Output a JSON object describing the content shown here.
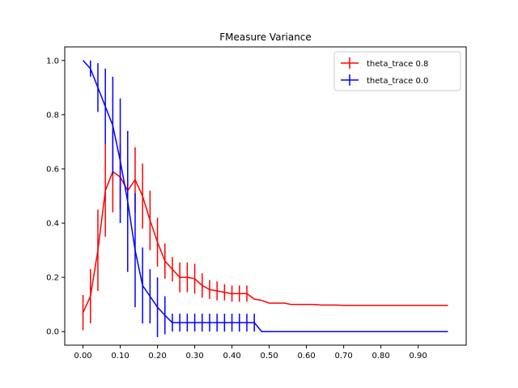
{
  "chart_data": {
    "type": "line",
    "title": "FMeasure Variance",
    "xlabel": "",
    "ylabel": "",
    "xlim": [
      -0.049,
      1.029
    ],
    "ylim": [
      -0.05,
      1.05
    ],
    "xticks": [
      0.0,
      0.1,
      0.2,
      0.3,
      0.4,
      0.5,
      0.6,
      0.7,
      0.8,
      0.9
    ],
    "xtick_labels": [
      "0.00",
      "0.10",
      "0.20",
      "0.30",
      "0.40",
      "0.50",
      "0.60",
      "0.70",
      "0.80",
      "0.90"
    ],
    "yticks": [
      0.0,
      0.2,
      0.4,
      0.6,
      0.8,
      1.0
    ],
    "ytick_labels": [
      "0.0",
      "0.2",
      "0.4",
      "0.6",
      "0.8",
      "1.0"
    ],
    "grid": false,
    "legend_position": "top-right",
    "series": [
      {
        "name": "theta_trace 0.8",
        "color": "#ff0000",
        "x": [
          0.0,
          0.02,
          0.04,
          0.06,
          0.08,
          0.1,
          0.12,
          0.14,
          0.16,
          0.18,
          0.2,
          0.22,
          0.24,
          0.26,
          0.28,
          0.3,
          0.32,
          0.34,
          0.36,
          0.38,
          0.4,
          0.42,
          0.44,
          0.46,
          0.48,
          0.5,
          0.52,
          0.54,
          0.56,
          0.58,
          0.6,
          0.62,
          0.64,
          0.66,
          0.68,
          0.7,
          0.72,
          0.74,
          0.76,
          0.78,
          0.8,
          0.82,
          0.84,
          0.86,
          0.88,
          0.9,
          0.92,
          0.94,
          0.96,
          0.98
        ],
        "y": [
          0.07,
          0.13,
          0.3,
          0.52,
          0.59,
          0.57,
          0.52,
          0.56,
          0.5,
          0.41,
          0.33,
          0.26,
          0.23,
          0.2,
          0.2,
          0.195,
          0.17,
          0.155,
          0.15,
          0.145,
          0.14,
          0.14,
          0.14,
          0.12,
          0.115,
          0.105,
          0.105,
          0.105,
          0.1,
          0.1,
          0.1,
          0.1,
          0.098,
          0.098,
          0.098,
          0.097,
          0.097,
          0.097,
          0.097,
          0.097,
          0.097,
          0.097,
          0.097,
          0.097,
          0.097,
          0.097,
          0.097,
          0.097,
          0.097,
          0.097
        ],
        "err": [
          0.065,
          0.1,
          0.15,
          0.17,
          0.15,
          0.12,
          0.1,
          0.12,
          0.12,
          0.11,
          0.09,
          0.065,
          0.045,
          0.055,
          0.055,
          0.055,
          0.045,
          0.035,
          0.035,
          0.03,
          0.03,
          0.03,
          0.03,
          0.0,
          0.0,
          0.0,
          0.0,
          0.0,
          0.0,
          0.0,
          0.0,
          0.0,
          0.0,
          0.0,
          0.0,
          0.0,
          0.0,
          0.0,
          0.0,
          0.0,
          0.0,
          0.0,
          0.0,
          0.0,
          0.0,
          0.0,
          0.0,
          0.0,
          0.0,
          0.0
        ]
      },
      {
        "name": "theta_trace 0.0",
        "color": "#0000ff",
        "x": [
          0.0,
          0.02,
          0.04,
          0.06,
          0.08,
          0.1,
          0.12,
          0.14,
          0.16,
          0.18,
          0.2,
          0.22,
          0.24,
          0.26,
          0.28,
          0.3,
          0.32,
          0.34,
          0.36,
          0.38,
          0.4,
          0.42,
          0.44,
          0.46,
          0.48,
          0.5,
          0.52,
          0.54,
          0.56,
          0.58,
          0.6,
          0.62,
          0.64,
          0.66,
          0.68,
          0.7,
          0.72,
          0.74,
          0.76,
          0.78,
          0.8,
          0.82,
          0.84,
          0.86,
          0.88,
          0.9,
          0.92,
          0.94,
          0.96,
          0.98
        ],
        "y": [
          1.0,
          0.97,
          0.9,
          0.83,
          0.76,
          0.63,
          0.48,
          0.3,
          0.17,
          0.13,
          0.09,
          0.06,
          0.033,
          0.033,
          0.033,
          0.033,
          0.033,
          0.033,
          0.033,
          0.033,
          0.033,
          0.033,
          0.033,
          0.033,
          0.0,
          0.0,
          0.0,
          0.0,
          0.0,
          0.0,
          0.0,
          0.0,
          0.0,
          0.0,
          0.0,
          0.0,
          0.0,
          0.0,
          0.0,
          0.0,
          0.0,
          0.0,
          0.0,
          0.0,
          0.0,
          0.0,
          0.0,
          0.0,
          0.0,
          0.0
        ],
        "err": [
          0.0,
          0.03,
          0.09,
          0.14,
          0.18,
          0.23,
          0.26,
          0.21,
          0.14,
          0.1,
          0.11,
          0.07,
          0.033,
          0.033,
          0.033,
          0.033,
          0.033,
          0.033,
          0.033,
          0.033,
          0.033,
          0.033,
          0.033,
          0.033,
          0.0,
          0.0,
          0.0,
          0.0,
          0.0,
          0.0,
          0.0,
          0.0,
          0.0,
          0.0,
          0.0,
          0.0,
          0.0,
          0.0,
          0.0,
          0.0,
          0.0,
          0.0,
          0.0,
          0.0,
          0.0,
          0.0,
          0.0,
          0.0,
          0.0,
          0.0
        ]
      }
    ]
  }
}
